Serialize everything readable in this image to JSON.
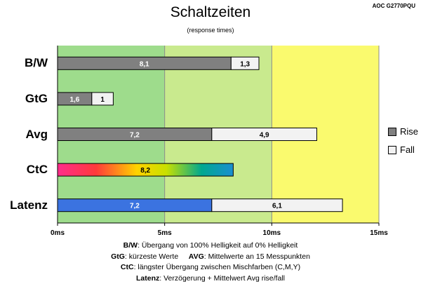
{
  "header": {
    "model": "AOC G2770PQU",
    "title": "Schaltzeiten",
    "subtitle": "(response times)"
  },
  "legend": [
    {
      "name": "Rise",
      "color": "#808080"
    },
    {
      "name": "Fall",
      "color": "#f2f2f2"
    }
  ],
  "footnotes": {
    "line1": {
      "key": "B/W",
      "text": ": Übergang von 100% Helligkeit auf 0% Helligkeit"
    },
    "line2": {
      "key": "GtG",
      "text": ": kürzeste Werte",
      "key2": "AVG",
      "text2": ": Mittelwerte an 15 Messpunkten"
    },
    "line3": {
      "key": "CtC",
      "text": ": längster Übergang zwischen Mischfarben (C,M,Y)"
    },
    "line4": {
      "key": "Latenz",
      "text": ": Verzögerung + Mittelwert Avg rise/fall"
    }
  },
  "colors": {
    "zone_green": "#9edc8c",
    "zone_lightgreen": "#c9ea8e",
    "zone_yellow": "#fafa6e",
    "rise": "#808080",
    "fall": "#f2f2f2",
    "latenz": "#3b73e0",
    "gridline": "#8c8c8c"
  },
  "chart_data": {
    "type": "bar",
    "orientation": "horizontal",
    "stacked": true,
    "title": "Schaltzeiten",
    "subtitle": "(response times)",
    "categories": [
      "B/W",
      "GtG",
      "Avg",
      "CtC",
      "Latenz"
    ],
    "series": [
      {
        "name": "Rise",
        "values": [
          8.1,
          1.6,
          7.2,
          8.2,
          7.2
        ]
      },
      {
        "name": "Fall",
        "values": [
          1.3,
          1,
          4.9,
          null,
          6.1
        ]
      }
    ],
    "value_labels": [
      [
        "8,1",
        "1,3"
      ],
      [
        "1,6",
        "1"
      ],
      [
        "7,2",
        "4,9"
      ],
      [
        "8,2",
        ""
      ],
      [
        "7,2",
        "6,1"
      ]
    ],
    "xlim": [
      0,
      15
    ],
    "xticks": [
      0,
      5,
      10,
      15
    ],
    "xtick_labels": [
      "0ms",
      "5ms",
      "10ms",
      "15ms"
    ],
    "background_zones": [
      {
        "from": 0,
        "to": 5,
        "color": "green"
      },
      {
        "from": 5,
        "to": 10,
        "color": "light-green"
      },
      {
        "from": 10,
        "to": 15,
        "color": "yellow"
      }
    ],
    "legend_position": "right",
    "grid": true
  }
}
